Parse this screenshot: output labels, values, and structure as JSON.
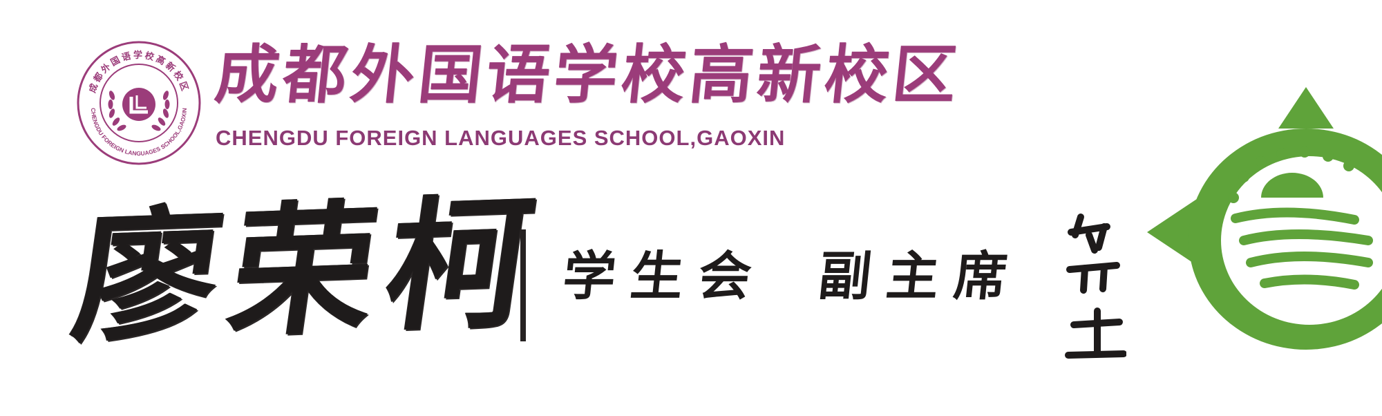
{
  "brand": {
    "school_name_cn": "成都外国语学校高新校区",
    "school_name_en": "CHENGDU FOREIGN LANGUAGES SCHOOL,GAOXIN",
    "seal_ring_text_top": "成都外国语学校高新校区",
    "seal_ring_text_bottom": "CHENGDU FOREIGN LANGUAGES SCHOOL,GAOXIN",
    "primary_color": "#9b3c7a"
  },
  "card": {
    "name": "廖荣柯",
    "role_group": "学生会",
    "role_title": "副主席",
    "text_color": "#1e1b1b"
  },
  "emblems": {
    "org_mark_icon": "calligraphy-seal-mark",
    "club_emblem_icon": "green-fish-globe-emblem",
    "club_color": "#5fa33a"
  }
}
